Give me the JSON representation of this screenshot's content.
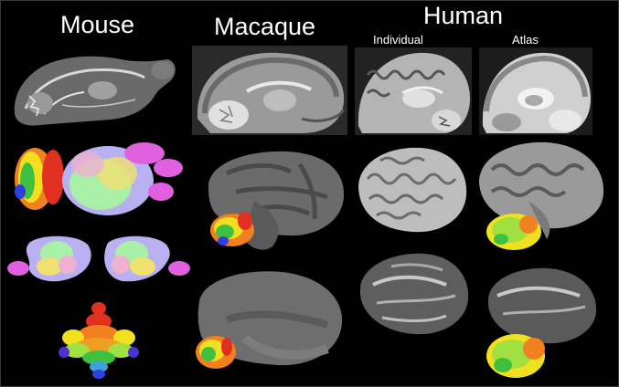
{
  "headers": {
    "mouse": "Mouse",
    "macaque": "Macaque",
    "human": "Human"
  },
  "subheaders": {
    "individual": "Individual",
    "atlas": "Atlas"
  },
  "colors": {
    "background": "#000000",
    "text": "#ffffff",
    "cortex_gray": "#6b6b6b",
    "atlas_lavender": "#b8b0f0",
    "atlas_pink": "#e060e0",
    "atlas_green": "#a8f0a8",
    "atlas_yellow": "#f0e070",
    "cerebellum_red": "#e03020",
    "cerebellum_orange": "#f08020",
    "cerebellum_yellow": "#f0e020",
    "cerebellum_green": "#40c040",
    "cerebellum_blue": "#3040e0"
  },
  "rows": [
    "mri-sagittal",
    "cerebellar-atlas",
    "inflated-surface",
    "flatmap-or-inflated"
  ]
}
